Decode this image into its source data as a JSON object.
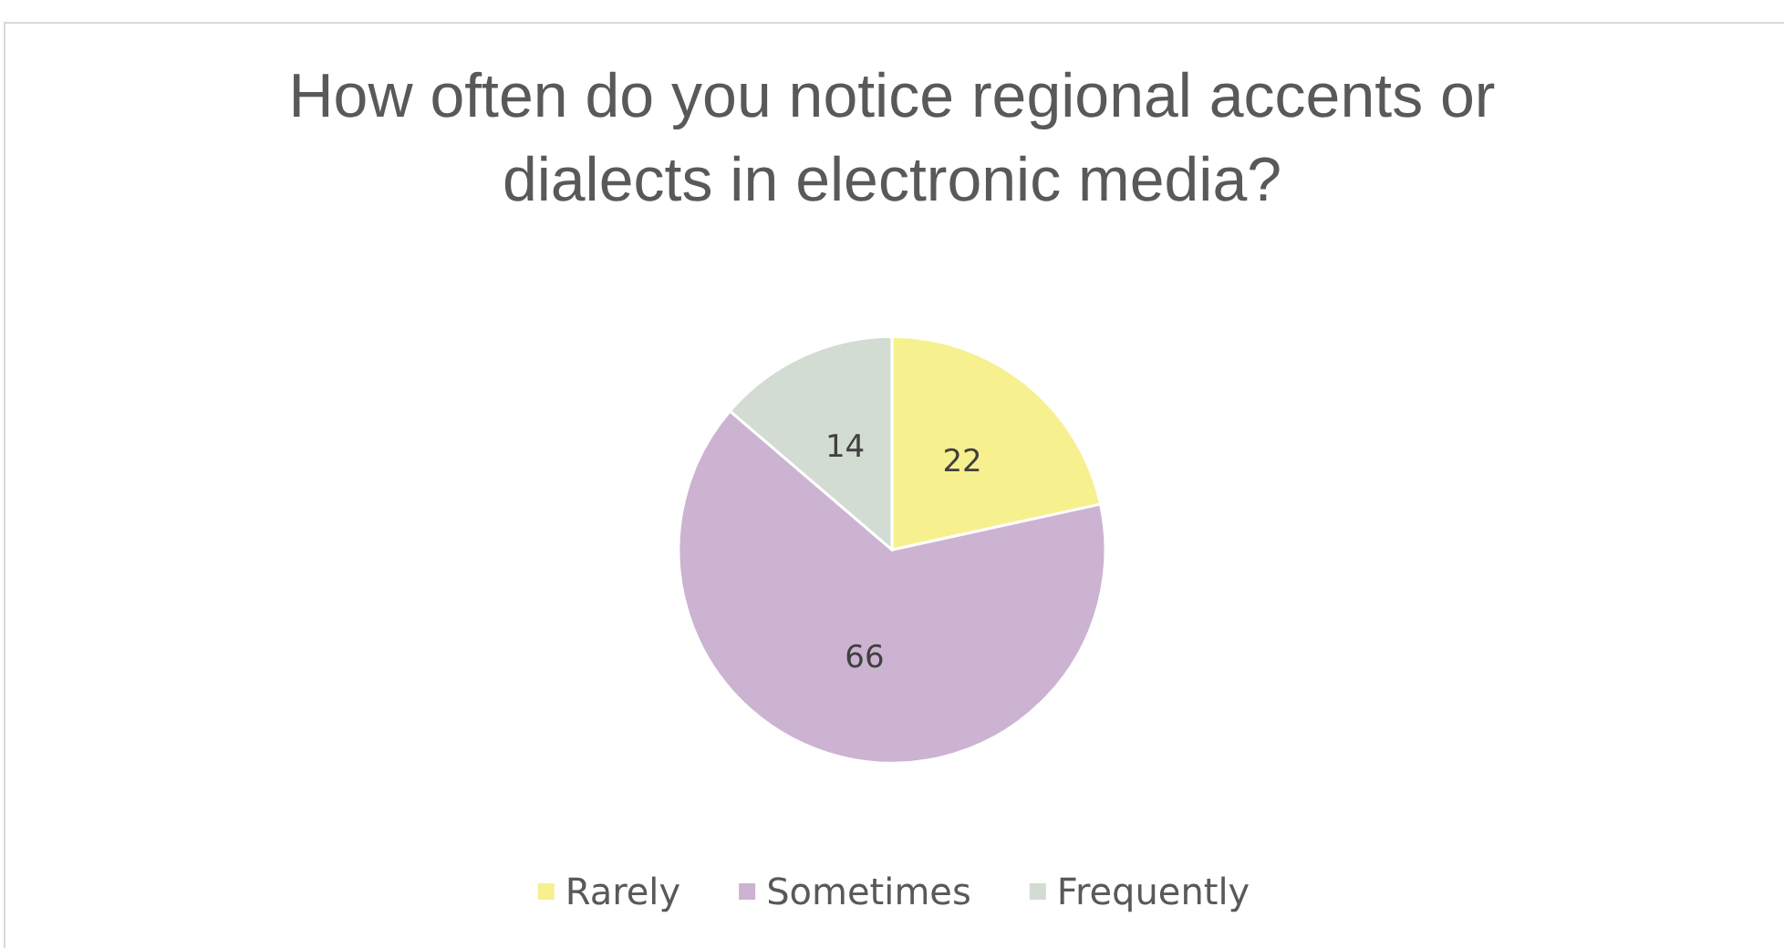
{
  "chart_data": {
    "type": "pie",
    "title": "How often do you notice regional accents or dialects in electronic media?",
    "categories": [
      "Rarely",
      "Sometimes",
      "Frequently"
    ],
    "values": [
      22,
      66,
      14
    ],
    "colors": [
      "#f7f08e",
      "#ccb3d1",
      "#d3dcd2"
    ],
    "data_labels": true,
    "legend": "bottom"
  }
}
